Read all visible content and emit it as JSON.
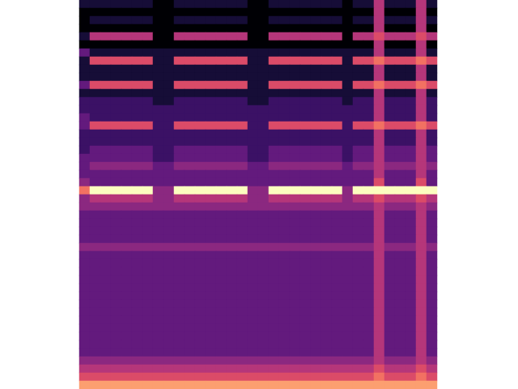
{
  "chart_data": {
    "type": "heatmap",
    "tick_labels": false,
    "color_range": [
      0,
      10
    ],
    "values": [
      [
        1,
        1,
        1,
        1,
        1,
        1,
        1,
        0,
        0,
        1,
        1,
        1,
        1,
        1,
        1,
        1,
        0,
        0,
        1,
        1,
        1,
        1,
        1,
        1,
        1,
        0,
        1,
        1,
        5,
        1,
        1,
        1,
        5,
        1
      ],
      [
        0,
        0,
        0,
        0,
        0,
        0,
        0,
        0,
        0,
        0,
        0,
        0,
        0,
        0,
        0,
        0,
        0,
        0,
        0,
        0,
        0,
        0,
        0,
        0,
        0,
        0,
        0,
        0,
        5,
        0,
        0,
        0,
        5,
        0
      ],
      [
        0,
        1,
        1,
        1,
        1,
        1,
        1,
        0,
        0,
        1,
        1,
        1,
        1,
        1,
        1,
        1,
        0,
        0,
        1,
        1,
        1,
        1,
        1,
        1,
        1,
        0,
        1,
        1,
        5,
        1,
        1,
        1,
        5,
        1
      ],
      [
        0,
        0,
        0,
        0,
        0,
        0,
        0,
        0,
        0,
        0,
        0,
        0,
        0,
        0,
        0,
        0,
        0,
        0,
        0,
        0,
        0,
        0,
        0,
        0,
        0,
        0,
        0,
        0,
        5,
        0,
        0,
        0,
        5,
        0
      ],
      [
        1,
        5,
        5,
        5,
        5,
        5,
        5,
        0,
        0,
        5,
        5,
        5,
        5,
        5,
        5,
        5,
        0,
        0,
        5,
        5,
        5,
        5,
        5,
        5,
        5,
        0,
        5,
        5,
        6,
        5,
        5,
        5,
        6,
        5
      ],
      [
        0,
        0,
        0,
        0,
        0,
        0,
        0,
        0,
        0,
        0,
        0,
        0,
        0,
        0,
        0,
        0,
        0,
        0,
        0,
        0,
        0,
        0,
        0,
        0,
        0,
        0,
        0,
        0,
        5,
        0,
        0,
        0,
        5,
        0
      ],
      [
        3,
        1,
        1,
        1,
        1,
        1,
        1,
        1,
        1,
        1,
        1,
        1,
        1,
        1,
        1,
        1,
        1,
        1,
        1,
        1,
        1,
        1,
        1,
        1,
        1,
        1,
        1,
        1,
        5,
        1,
        1,
        1,
        5,
        1
      ],
      [
        1,
        6,
        6,
        6,
        6,
        6,
        6,
        1,
        1,
        6,
        6,
        6,
        6,
        6,
        6,
        6,
        1,
        1,
        6,
        6,
        6,
        6,
        6,
        6,
        6,
        1,
        6,
        6,
        7,
        6,
        6,
        6,
        7,
        6
      ],
      [
        1,
        1,
        1,
        1,
        1,
        1,
        1,
        1,
        1,
        1,
        1,
        1,
        1,
        1,
        1,
        1,
        1,
        1,
        1,
        1,
        1,
        1,
        1,
        1,
        1,
        1,
        1,
        1,
        5,
        1,
        1,
        1,
        5,
        1
      ],
      [
        1,
        1,
        1,
        1,
        1,
        1,
        1,
        1,
        1,
        1,
        1,
        1,
        1,
        1,
        1,
        1,
        1,
        1,
        1,
        1,
        1,
        1,
        1,
        1,
        1,
        1,
        1,
        1,
        5,
        1,
        1,
        1,
        5,
        1
      ],
      [
        3,
        6,
        6,
        6,
        6,
        6,
        6,
        1,
        1,
        6,
        6,
        6,
        6,
        6,
        6,
        6,
        1,
        1,
        6,
        6,
        6,
        6,
        6,
        6,
        6,
        1,
        6,
        6,
        7,
        6,
        6,
        6,
        7,
        6
      ],
      [
        1,
        1,
        1,
        1,
        1,
        1,
        1,
        1,
        1,
        1,
        1,
        1,
        1,
        1,
        1,
        1,
        1,
        1,
        1,
        1,
        1,
        1,
        1,
        1,
        1,
        1,
        1,
        1,
        5,
        1,
        1,
        1,
        5,
        1
      ],
      [
        2,
        2,
        2,
        2,
        2,
        2,
        2,
        1,
        1,
        2,
        2,
        2,
        2,
        2,
        2,
        2,
        1,
        1,
        2,
        2,
        2,
        2,
        2,
        2,
        2,
        1,
        2,
        2,
        5,
        2,
        2,
        2,
        5,
        2
      ],
      [
        2,
        2,
        2,
        2,
        2,
        2,
        2,
        2,
        2,
        2,
        2,
        2,
        2,
        2,
        2,
        2,
        2,
        2,
        2,
        2,
        2,
        2,
        2,
        2,
        2,
        2,
        2,
        2,
        5,
        2,
        2,
        2,
        5,
        2
      ],
      [
        3,
        2,
        2,
        2,
        2,
        2,
        2,
        2,
        2,
        2,
        2,
        2,
        2,
        2,
        2,
        2,
        2,
        2,
        2,
        2,
        2,
        2,
        2,
        2,
        2,
        2,
        2,
        2,
        5,
        2,
        2,
        2,
        5,
        2
      ],
      [
        3,
        6,
        6,
        6,
        6,
        6,
        6,
        2,
        2,
        6,
        6,
        6,
        6,
        6,
        6,
        6,
        2,
        2,
        6,
        6,
        6,
        6,
        6,
        6,
        6,
        2,
        6,
        6,
        7,
        6,
        6,
        6,
        7,
        6
      ],
      [
        2,
        2,
        2,
        2,
        2,
        2,
        2,
        2,
        2,
        2,
        2,
        2,
        2,
        2,
        2,
        2,
        2,
        2,
        2,
        2,
        2,
        2,
        2,
        2,
        2,
        2,
        2,
        2,
        5,
        2,
        2,
        2,
        5,
        2
      ],
      [
        2,
        2,
        2,
        2,
        2,
        2,
        2,
        2,
        2,
        2,
        2,
        2,
        2,
        2,
        2,
        2,
        2,
        2,
        2,
        2,
        2,
        2,
        2,
        2,
        2,
        2,
        2,
        2,
        5,
        2,
        2,
        2,
        5,
        2
      ],
      [
        2,
        3,
        3,
        3,
        3,
        3,
        3,
        2,
        2,
        3,
        3,
        3,
        3,
        3,
        3,
        3,
        2,
        2,
        3,
        3,
        3,
        3,
        3,
        3,
        3,
        2,
        3,
        3,
        5,
        3,
        3,
        3,
        5,
        3
      ],
      [
        3,
        3,
        3,
        3,
        3,
        3,
        3,
        2,
        2,
        3,
        3,
        3,
        3,
        3,
        3,
        3,
        2,
        2,
        3,
        3,
        3,
        3,
        3,
        3,
        3,
        2,
        3,
        3,
        5,
        3,
        3,
        3,
        5,
        3
      ],
      [
        3,
        4,
        4,
        4,
        4,
        4,
        4,
        3,
        3,
        4,
        4,
        4,
        4,
        4,
        4,
        4,
        3,
        3,
        4,
        4,
        4,
        4,
        4,
        4,
        4,
        3,
        4,
        4,
        5,
        4,
        4,
        4,
        5,
        4
      ],
      [
        3,
        3,
        3,
        3,
        3,
        3,
        3,
        3,
        3,
        3,
        3,
        3,
        3,
        3,
        3,
        3,
        3,
        3,
        3,
        3,
        3,
        3,
        3,
        3,
        3,
        3,
        3,
        3,
        5,
        3,
        3,
        3,
        5,
        3
      ],
      [
        4,
        3,
        3,
        3,
        3,
        3,
        3,
        3,
        3,
        3,
        3,
        3,
        3,
        3,
        3,
        3,
        3,
        3,
        3,
        3,
        3,
        3,
        3,
        3,
        3,
        3,
        3,
        3,
        6,
        3,
        3,
        3,
        6,
        3
      ],
      [
        7,
        10,
        10,
        10,
        10,
        10,
        10,
        4,
        4,
        10,
        10,
        10,
        10,
        10,
        10,
        10,
        4,
        4,
        10,
        10,
        10,
        10,
        10,
        10,
        10,
        4,
        10,
        10,
        10,
        10,
        10,
        10,
        10,
        10
      ],
      [
        4,
        5,
        5,
        5,
        5,
        5,
        5,
        4,
        4,
        5,
        5,
        5,
        5,
        5,
        5,
        5,
        4,
        4,
        5,
        5,
        5,
        5,
        5,
        5,
        5,
        4,
        5,
        5,
        6,
        5,
        5,
        5,
        6,
        5
      ],
      [
        4,
        4,
        4,
        4,
        4,
        4,
        4,
        4,
        4,
        4,
        4,
        4,
        4,
        4,
        4,
        4,
        4,
        4,
        4,
        4,
        4,
        4,
        4,
        4,
        4,
        4,
        4,
        4,
        5,
        4,
        4,
        4,
        5,
        4
      ],
      [
        3,
        3,
        3,
        3,
        3,
        3,
        3,
        3,
        3,
        3,
        3,
        3,
        3,
        3,
        3,
        3,
        3,
        3,
        3,
        3,
        3,
        3,
        3,
        3,
        3,
        3,
        3,
        3,
        5,
        3,
        3,
        3,
        5,
        3
      ],
      [
        3,
        3,
        3,
        3,
        3,
        3,
        3,
        3,
        3,
        3,
        3,
        3,
        3,
        3,
        3,
        3,
        3,
        3,
        3,
        3,
        3,
        3,
        3,
        3,
        3,
        3,
        3,
        3,
        5,
        3,
        3,
        3,
        5,
        3
      ],
      [
        3,
        3,
        3,
        3,
        3,
        3,
        3,
        3,
        3,
        3,
        3,
        3,
        3,
        3,
        3,
        3,
        3,
        3,
        3,
        3,
        3,
        3,
        3,
        3,
        3,
        3,
        3,
        3,
        5,
        3,
        3,
        3,
        5,
        3
      ],
      [
        3,
        3,
        3,
        3,
        3,
        3,
        3,
        3,
        3,
        3,
        3,
        3,
        3,
        3,
        3,
        3,
        3,
        3,
        3,
        3,
        3,
        3,
        3,
        3,
        3,
        3,
        3,
        3,
        5,
        3,
        3,
        3,
        5,
        3
      ],
      [
        4,
        4,
        4,
        4,
        4,
        4,
        4,
        4,
        4,
        4,
        4,
        4,
        4,
        4,
        4,
        4,
        4,
        4,
        4,
        4,
        4,
        4,
        4,
        4,
        4,
        4,
        4,
        4,
        5,
        4,
        4,
        4,
        5,
        4
      ],
      [
        3,
        3,
        3,
        3,
        3,
        3,
        3,
        3,
        3,
        3,
        3,
        3,
        3,
        3,
        3,
        3,
        3,
        3,
        3,
        3,
        3,
        3,
        3,
        3,
        3,
        3,
        3,
        3,
        5,
        3,
        3,
        3,
        5,
        3
      ],
      [
        3,
        3,
        3,
        3,
        3,
        3,
        3,
        3,
        3,
        3,
        3,
        3,
        3,
        3,
        3,
        3,
        3,
        3,
        3,
        3,
        3,
        3,
        3,
        3,
        3,
        3,
        3,
        3,
        5,
        3,
        3,
        3,
        5,
        3
      ],
      [
        3,
        3,
        3,
        3,
        3,
        3,
        3,
        3,
        3,
        3,
        3,
        3,
        3,
        3,
        3,
        3,
        3,
        3,
        3,
        3,
        3,
        3,
        3,
        3,
        3,
        3,
        3,
        3,
        5,
        3,
        3,
        3,
        5,
        3
      ],
      [
        3,
        3,
        3,
        3,
        3,
        3,
        3,
        3,
        3,
        3,
        3,
        3,
        3,
        3,
        3,
        3,
        3,
        3,
        3,
        3,
        3,
        3,
        3,
        3,
        3,
        3,
        3,
        3,
        5,
        3,
        3,
        3,
        5,
        3
      ],
      [
        3,
        3,
        3,
        3,
        3,
        3,
        3,
        3,
        3,
        3,
        3,
        3,
        3,
        3,
        3,
        3,
        3,
        3,
        3,
        3,
        3,
        3,
        3,
        3,
        3,
        3,
        3,
        3,
        5,
        3,
        3,
        3,
        5,
        3
      ],
      [
        3,
        3,
        3,
        3,
        3,
        3,
        3,
        3,
        3,
        3,
        3,
        3,
        3,
        3,
        3,
        3,
        3,
        3,
        3,
        3,
        3,
        3,
        3,
        3,
        3,
        3,
        3,
        3,
        5,
        3,
        3,
        3,
        5,
        3
      ],
      [
        3,
        3,
        3,
        3,
        3,
        3,
        3,
        3,
        3,
        3,
        3,
        3,
        3,
        3,
        3,
        3,
        3,
        3,
        3,
        3,
        3,
        3,
        3,
        3,
        3,
        3,
        3,
        3,
        5,
        3,
        3,
        3,
        5,
        3
      ],
      [
        3,
        3,
        3,
        3,
        3,
        3,
        3,
        3,
        3,
        3,
        3,
        3,
        3,
        3,
        3,
        3,
        3,
        3,
        3,
        3,
        3,
        3,
        3,
        3,
        3,
        3,
        3,
        3,
        5,
        3,
        3,
        3,
        5,
        3
      ],
      [
        3,
        3,
        3,
        3,
        3,
        3,
        3,
        3,
        3,
        3,
        3,
        3,
        3,
        3,
        3,
        3,
        3,
        3,
        3,
        3,
        3,
        3,
        3,
        3,
        3,
        3,
        3,
        3,
        5,
        3,
        3,
        3,
        5,
        3
      ],
      [
        3,
        3,
        3,
        3,
        3,
        3,
        3,
        3,
        3,
        3,
        3,
        3,
        3,
        3,
        3,
        3,
        3,
        3,
        3,
        3,
        3,
        3,
        3,
        3,
        3,
        3,
        3,
        3,
        5,
        3,
        3,
        3,
        5,
        3
      ],
      [
        3,
        3,
        3,
        3,
        3,
        3,
        3,
        3,
        3,
        3,
        3,
        3,
        3,
        3,
        3,
        3,
        3,
        3,
        3,
        3,
        3,
        3,
        3,
        3,
        3,
        3,
        3,
        3,
        5,
        3,
        3,
        3,
        5,
        3
      ],
      [
        3,
        3,
        3,
        3,
        3,
        3,
        3,
        3,
        3,
        3,
        3,
        3,
        3,
        3,
        3,
        3,
        3,
        3,
        3,
        3,
        3,
        3,
        3,
        3,
        3,
        3,
        3,
        3,
        5,
        3,
        3,
        3,
        5,
        3
      ],
      [
        3,
        3,
        3,
        3,
        3,
        3,
        3,
        3,
        3,
        3,
        3,
        3,
        3,
        3,
        3,
        3,
        3,
        3,
        3,
        3,
        3,
        3,
        3,
        3,
        3,
        3,
        3,
        3,
        5,
        3,
        3,
        3,
        5,
        3
      ],
      [
        4,
        4,
        4,
        4,
        4,
        4,
        4,
        4,
        4,
        4,
        4,
        4,
        4,
        4,
        4,
        4,
        4,
        4,
        4,
        4,
        4,
        4,
        4,
        4,
        4,
        4,
        4,
        4,
        5,
        4,
        4,
        4,
        5,
        4
      ],
      [
        5,
        5,
        5,
        5,
        5,
        5,
        5,
        5,
        5,
        5,
        5,
        5,
        5,
        5,
        5,
        5,
        5,
        5,
        5,
        5,
        5,
        5,
        5,
        5,
        5,
        5,
        5,
        5,
        6,
        5,
        5,
        5,
        6,
        5
      ],
      [
        6,
        6,
        6,
        6,
        6,
        6,
        6,
        6,
        6,
        6,
        6,
        6,
        6,
        6,
        6,
        6,
        6,
        6,
        6,
        6,
        6,
        6,
        6,
        6,
        6,
        6,
        6,
        6,
        7,
        6,
        6,
        6,
        7,
        6
      ],
      [
        8,
        8,
        8,
        8,
        8,
        8,
        8,
        8,
        8,
        8,
        8,
        8,
        8,
        8,
        8,
        8,
        8,
        8,
        8,
        8,
        8,
        8,
        8,
        8,
        8,
        8,
        8,
        8,
        8,
        8,
        8,
        8,
        8,
        8
      ]
    ]
  }
}
